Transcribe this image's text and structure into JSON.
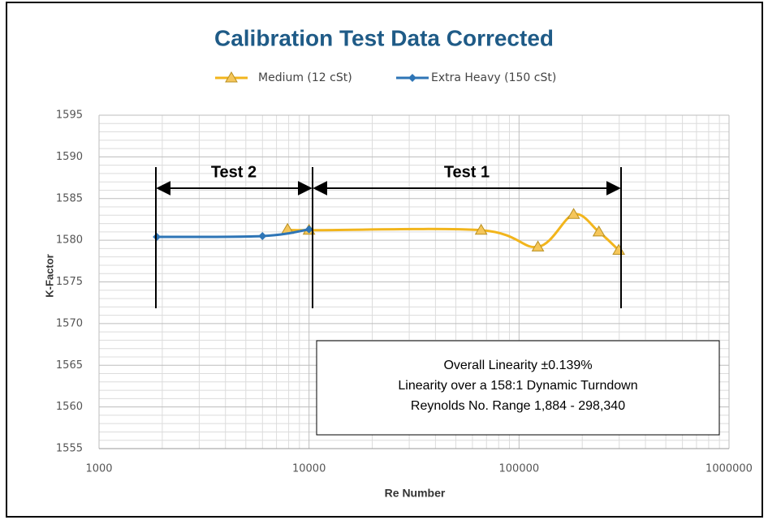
{
  "chart_data": {
    "type": "line",
    "title": "Calibration Test Data Corrected",
    "x_label": "Re Number",
    "y_label": "K-Factor",
    "x_scale": "log",
    "grid": true,
    "minor_grid": true,
    "legend": "top",
    "xlim": [
      1000,
      1000000
    ],
    "xticks": [
      1000,
      10000,
      100000,
      1000000
    ],
    "ylim": [
      1555,
      1595
    ],
    "yticks": [
      1555,
      1560,
      1565,
      1570,
      1575,
      1580,
      1585,
      1590,
      1595
    ],
    "series": [
      {
        "name": "Medium (12 cSt)",
        "color": "#f2b51c",
        "marker": "triangle",
        "x": [
          7900,
          10000,
          66000,
          123000,
          182000,
          240000,
          298340
        ],
        "values": [
          1581.3,
          1581.2,
          1581.2,
          1579.2,
          1583.1,
          1581.0,
          1578.8
        ]
      },
      {
        "name": "Extra Heavy (150 cSt)",
        "color": "#2e75b6",
        "marker": "diamond",
        "x": [
          1884,
          6000,
          10000
        ],
        "values": [
          1580.4,
          1580.5,
          1581.3
        ]
      }
    ],
    "annotations": [
      "Test 2",
      "Test 1"
    ],
    "text_box": [
      "Overall Linearity ±0.139%",
      "Linearity over a 158:1 Dynamic Turndown",
      "Reynolds No. Range 1,884 - 298,340"
    ]
  }
}
